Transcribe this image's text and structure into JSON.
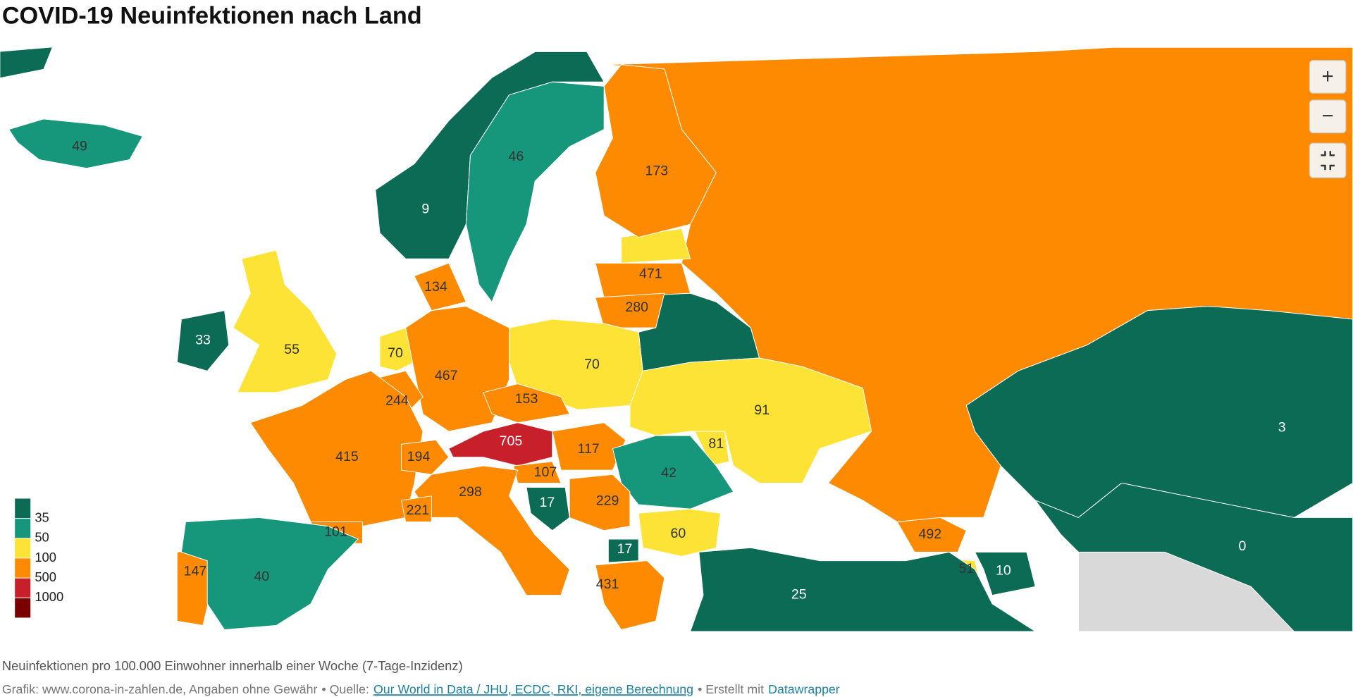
{
  "title": "COVID-19 Neuinfektionen nach Land",
  "map": {
    "values": [
      49,
      9,
      46,
      173,
      471,
      280,
      134,
      33,
      55,
      70,
      467,
      244,
      70,
      91,
      153,
      705,
      81,
      415,
      194,
      117,
      42,
      107,
      298,
      17,
      229,
      221,
      101,
      60,
      492,
      17,
      147,
      40,
      51,
      10,
      431,
      25,
      3,
      0
    ],
    "legend": {
      "ticks": [
        35,
        50,
        100,
        500,
        1000
      ],
      "colors": [
        "#0b6b55",
        "#16967a",
        "#fde335",
        "#fd8a00",
        "#c8202a",
        "#7a0000"
      ]
    }
  },
  "controls": {
    "zoom_in": "+",
    "zoom_out": "−"
  },
  "footer": {
    "description": "Neuinfektionen pro 100.000 Einwohner innerhalb einer Woche (7-Tage-Inzidenz)",
    "credit": "Grafik: www.corona-in-zahlen.de, Angaben ohne Gewähr",
    "source_prefix": "• Quelle:",
    "source": "Our World in Data / JHU, ECDC, RKI, eigene Berechnung",
    "tool_prefix": "• Erstellt mit",
    "tool": "Datawrapper"
  }
}
